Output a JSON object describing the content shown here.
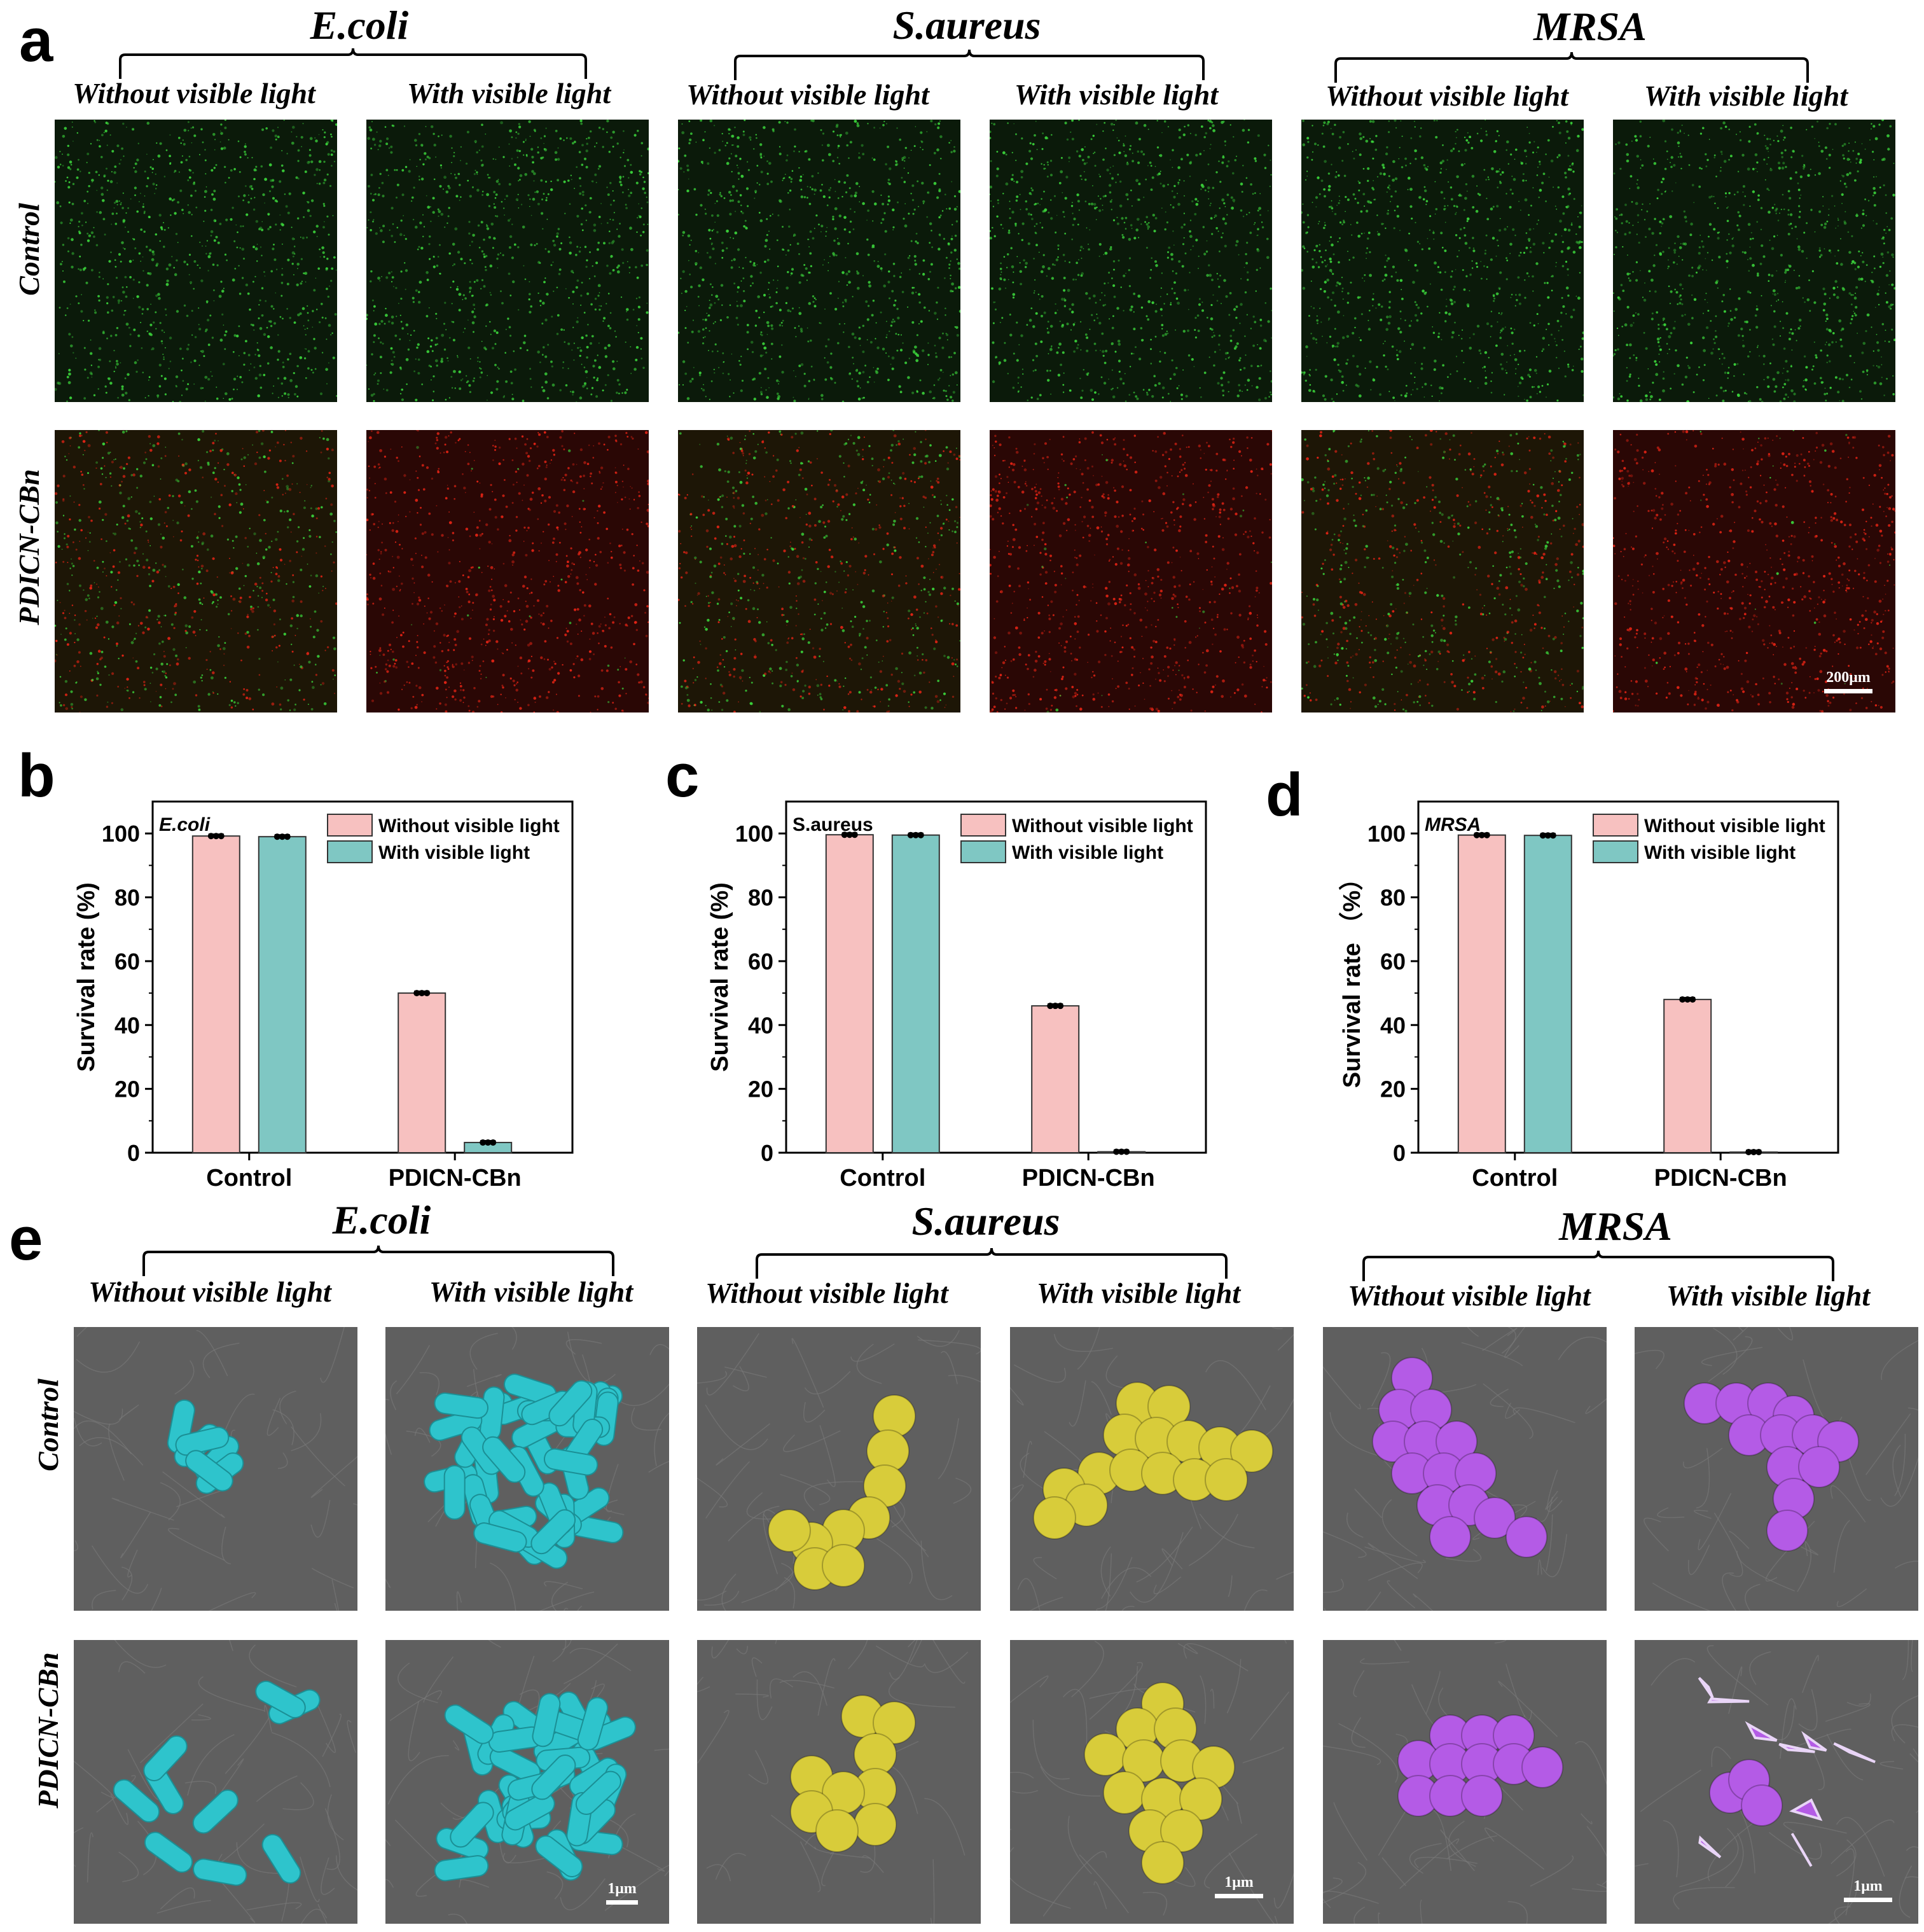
{
  "panels": {
    "a": "a",
    "b": "b",
    "c": "c",
    "d": "d",
    "e": "e"
  },
  "species": [
    "E.coli",
    "S.aureus",
    "MRSA"
  ],
  "conditions": [
    "Without visible light",
    "With visible light"
  ],
  "rows": [
    "Control",
    "PDICN-CBn"
  ],
  "scalebars": {
    "fluorescence": "200μm",
    "sem": "1μm"
  },
  "colors": {
    "green": "#3bd43b",
    "red": "#e52415",
    "ecoli_sem": "#2ec4cc",
    "saureus_sem": "#d8cc3a",
    "mrsa_sem": "#b45be6",
    "bar_pink": "#f7c1c0",
    "bar_teal": "#7fc7c3"
  },
  "chart_data": [
    {
      "type": "bar",
      "title": "E.coli",
      "categories": [
        "Control",
        "PDICN-CBn"
      ],
      "series": [
        {
          "name": "Without visible light",
          "values": [
            99.2,
            50.0
          ]
        },
        {
          "name": "With visible light",
          "values": [
            99.0,
            3.2
          ]
        }
      ],
      "ylabel": "Survival rate (%)",
      "xlabel": "",
      "ylim": [
        0,
        110
      ],
      "yticks": [
        0,
        20,
        40,
        60,
        80,
        100
      ],
      "legend": "top-right"
    },
    {
      "type": "bar",
      "title": "S.aureus",
      "categories": [
        "Control",
        "PDICN-CBn"
      ],
      "series": [
        {
          "name": "Without visible light",
          "values": [
            99.6,
            46.0
          ]
        },
        {
          "name": "With visible light",
          "values": [
            99.5,
            0.3
          ]
        }
      ],
      "ylabel": "Survival rate (%)",
      "xlabel": "",
      "ylim": [
        0,
        110
      ],
      "yticks": [
        0,
        20,
        40,
        60,
        80,
        100
      ],
      "legend": "top-right"
    },
    {
      "type": "bar",
      "title": "MRSA",
      "categories": [
        "Control",
        "PDICN-CBn"
      ],
      "series": [
        {
          "name": "Without visible light",
          "values": [
            99.5,
            48.0
          ]
        },
        {
          "name": "With visible light",
          "values": [
            99.4,
            0.2
          ]
        }
      ],
      "ylabel": "Survival rate （%）",
      "xlabel": "",
      "ylim": [
        0,
        110
      ],
      "yticks": [
        0,
        20,
        40,
        60,
        80,
        100
      ],
      "legend": "top-right"
    }
  ]
}
